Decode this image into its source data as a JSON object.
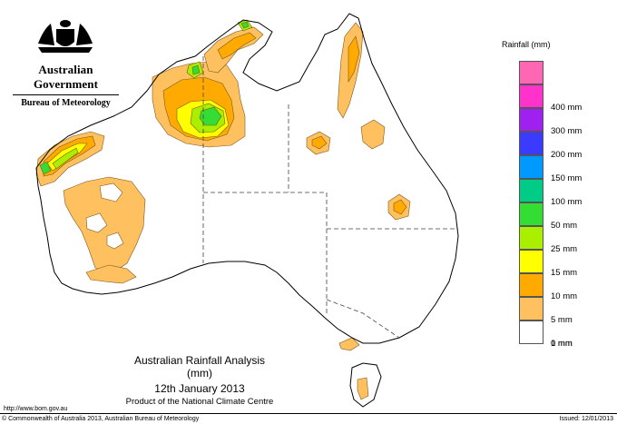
{
  "header": {
    "government": "Australian Government",
    "bureau": "Bureau of Meteorology"
  },
  "legend": {
    "title": "Rainfall (mm)",
    "items": [
      {
        "label": "",
        "color": "#ff66b3"
      },
      {
        "label": "400 mm",
        "color": "#ff33cc"
      },
      {
        "label": "300 mm",
        "color": "#a020f0"
      },
      {
        "label": "200 mm",
        "color": "#3b3bff"
      },
      {
        "label": "150 mm",
        "color": "#0099ff"
      },
      {
        "label": "100 mm",
        "color": "#00cc88"
      },
      {
        "label": "50 mm",
        "color": "#33dd33"
      },
      {
        "label": "25 mm",
        "color": "#aaee00"
      },
      {
        "label": "15 mm",
        "color": "#ffff00"
      },
      {
        "label": "10 mm",
        "color": "#ffaa00"
      },
      {
        "label": "5 mm",
        "color": "#ffc060"
      },
      {
        "label": "1 mm",
        "color": "#ffffff"
      },
      {
        "label": "0 mm",
        "color": ""
      }
    ]
  },
  "caption": {
    "title": "Australian Rainfall Analysis (mm)",
    "date": "12th January 2013",
    "product": "Product of the National Climate Centre"
  },
  "footer": {
    "url": "http://www.bom.gov.au",
    "copyright": "© Commonwealth of Australia 2013, Australian Bureau of Meteorology",
    "issued": "Issued: 12/01/2013"
  }
}
